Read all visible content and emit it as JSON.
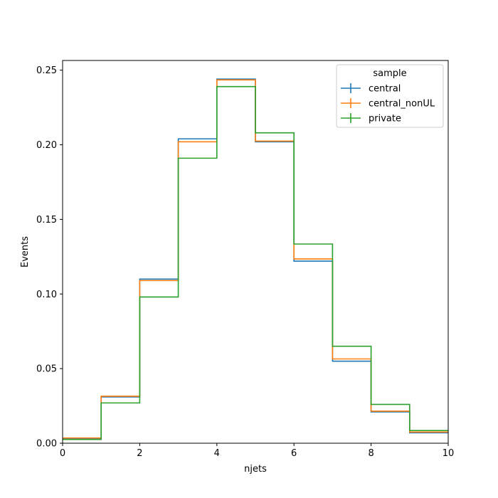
{
  "chart_data": {
    "type": "step-histogram",
    "xlabel": "njets",
    "ylabel": "Events",
    "xlim": [
      0,
      10
    ],
    "ylim": [
      0,
      0.2565
    ],
    "x_ticks": [
      0,
      2,
      4,
      6,
      8,
      10
    ],
    "y_ticks": [
      0.0,
      0.05,
      0.1,
      0.15,
      0.2,
      0.25
    ],
    "bin_edges": [
      0,
      1,
      2,
      3,
      4,
      5,
      6,
      7,
      8,
      9,
      10
    ],
    "grid": false,
    "legend": {
      "title": "sample",
      "placement": "top-right"
    },
    "series": [
      {
        "name": "central",
        "color": "#1f77b4",
        "values": [
          0.003,
          0.031,
          0.11,
          0.204,
          0.244,
          0.202,
          0.122,
          0.055,
          0.021,
          0.007
        ]
      },
      {
        "name": "central_nonUL",
        "color": "#ff7f0e",
        "values": [
          0.0035,
          0.0315,
          0.109,
          0.202,
          0.2435,
          0.2025,
          0.1235,
          0.0565,
          0.0215,
          0.0075
        ]
      },
      {
        "name": "private",
        "color": "#2ca02c",
        "values": [
          0.0025,
          0.027,
          0.098,
          0.191,
          0.239,
          0.208,
          0.1335,
          0.065,
          0.026,
          0.0085
        ]
      }
    ]
  }
}
